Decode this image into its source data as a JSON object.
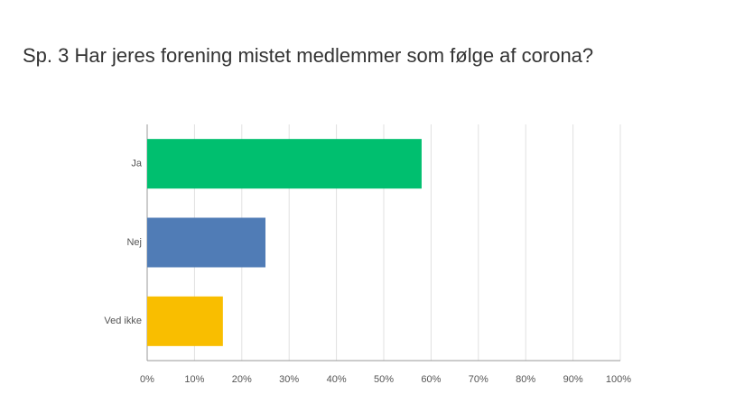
{
  "chart_data": {
    "type": "hbar",
    "title": "Sp. 3 Har jeres forening mistet medlemmer som følge af corona?",
    "categories": [
      "Ja",
      "Nej",
      "Ved ikke"
    ],
    "values": [
      58,
      25,
      16
    ],
    "colors": [
      "#00bf6f",
      "#507cb6",
      "#f9be00"
    ],
    "xlim": [
      0,
      100
    ],
    "xticks": [
      {
        "value": 0,
        "label": "0%"
      },
      {
        "value": 10,
        "label": "10%"
      },
      {
        "value": 20,
        "label": "20%"
      },
      {
        "value": 30,
        "label": "30%"
      },
      {
        "value": 40,
        "label": "40%"
      },
      {
        "value": 50,
        "label": "50%"
      },
      {
        "value": 60,
        "label": "60%"
      },
      {
        "value": 70,
        "label": "70%"
      },
      {
        "value": 80,
        "label": "80%"
      },
      {
        "value": 90,
        "label": "90%"
      },
      {
        "value": 100,
        "label": "100%"
      }
    ],
    "grid": true
  }
}
